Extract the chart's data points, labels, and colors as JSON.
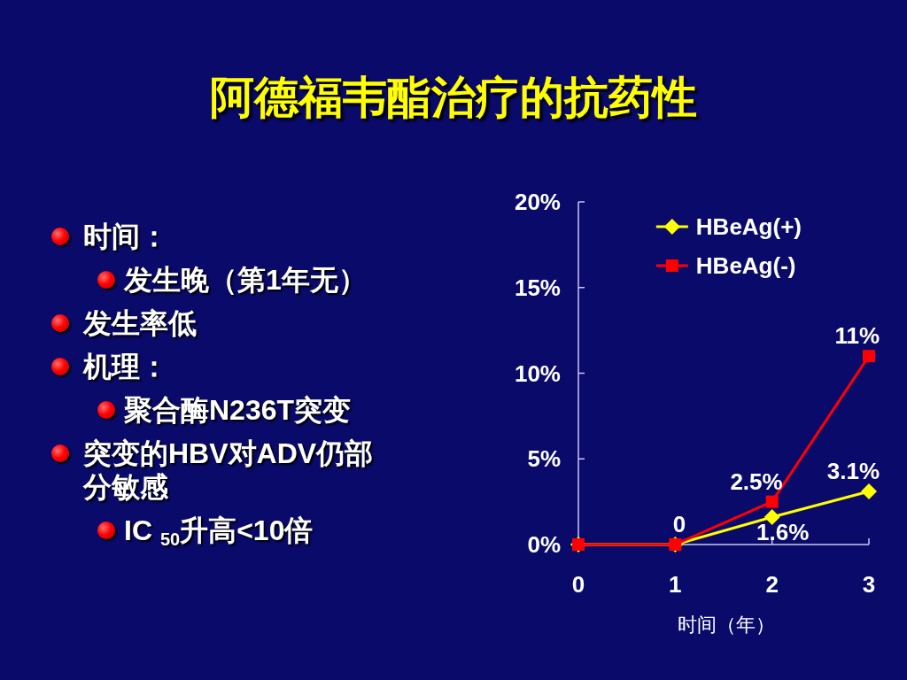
{
  "chart_data": [
    {
      "type": "other",
      "title": "阿德福韦酯治疗的抗药性",
      "annotations": [
        "时间：",
        [
          "发生晚（第1年无）"
        ],
        "发生率低",
        "机理：",
        [
          "聚合酶N236T突变"
        ],
        "突变的HBV对ADV仍部分敏感",
        [
          "IC $_{50}$升高<10倍"
        ]
      ]
    },
    {
      "type": "line",
      "xlabel": "时间（年）",
      "x": [
        0,
        1,
        2,
        3
      ],
      "xlim": [
        0,
        3
      ],
      "xticks": [
        0,
        1,
        2,
        3
      ],
      "ylim": [
        0,
        20
      ],
      "yticks": [
        {
          "value": 0,
          "label": "0%"
        },
        {
          "value": 5,
          "label": "5%"
        },
        {
          "value": 10,
          "label": "10%"
        },
        {
          "value": 15,
          "label": "15%"
        },
        {
          "value": 20,
          "label": "20%"
        }
      ],
      "legend": "top right",
      "line_style": "solid",
      "series": [
        {
          "name": "HBeAg(+)",
          "color": "#ffff00",
          "marker": "diamond",
          "values": [
            0,
            0,
            1.6,
            3.1
          ],
          "value_labels": [
            null,
            null,
            "1.6%",
            "3.1%"
          ]
        },
        {
          "name": "HBeAg(-)",
          "color": "#ff0000",
          "marker": "square",
          "values": [
            0,
            0,
            2.5,
            11
          ],
          "value_labels": [
            null,
            "0",
            "2.5%",
            "11%"
          ]
        }
      ]
    }
  ]
}
